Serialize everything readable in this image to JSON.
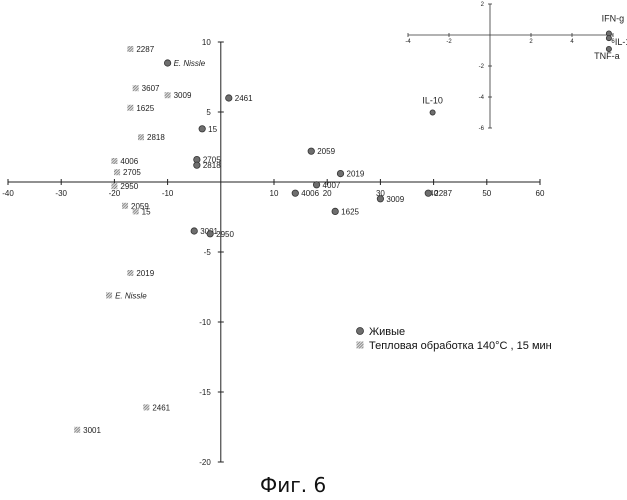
{
  "figure_caption": "Фиг. 6",
  "chart_data": [
    {
      "type": "scatter",
      "title": "",
      "xlabel": "",
      "ylabel": "",
      "xlim": [
        -40,
        60
      ],
      "ylim": [
        -20,
        10
      ],
      "x_ticks": [
        -40,
        -30,
        -20,
        -10,
        10,
        20,
        30,
        40,
        50,
        60
      ],
      "y_ticks": [
        10,
        5,
        -5,
        -10,
        -15,
        -20
      ],
      "legend": {
        "placement": "bottom-right",
        "entries": [
          {
            "name": "Живые",
            "marker": "dark-circle"
          },
          {
            "name": "Тепловая обработка 140°C , 15 мин",
            "marker": "hatched-square"
          }
        ]
      },
      "series": [
        {
          "name": "Живые",
          "marker": "dark-circle",
          "points": [
            {
              "label": "E. Nissle",
              "x": -10,
              "y": 8.5,
              "italic": true
            },
            {
              "label": "2461",
              "x": 1.5,
              "y": 6.0
            },
            {
              "label": "15",
              "x": -3.5,
              "y": 3.8
            },
            {
              "label": "2705",
              "x": -4.5,
              "y": 1.6
            },
            {
              "label": "2818",
              "x": -4.5,
              "y": 1.2
            },
            {
              "label": "2059",
              "x": 17,
              "y": 2.2
            },
            {
              "label": "2019",
              "x": 22.5,
              "y": 0.6
            },
            {
              "label": "4007",
              "x": 18,
              "y": -0.2
            },
            {
              "label": "4006",
              "x": 14,
              "y": -0.8
            },
            {
              "label": "3009",
              "x": 30,
              "y": -1.2
            },
            {
              "label": "2287",
              "x": 39,
              "y": -0.8
            },
            {
              "label": "1625",
              "x": 21.5,
              "y": -2.1
            },
            {
              "label": "3001",
              "x": -5,
              "y": -3.5
            },
            {
              "label": "2950",
              "x": -2,
              "y": -3.7
            }
          ]
        },
        {
          "name": "Тепловая обработка 140°C , 15 мин",
          "marker": "hatched-square",
          "points": [
            {
              "label": "2287",
              "x": -17,
              "y": 9.5
            },
            {
              "label": "3607",
              "x": -16,
              "y": 6.7
            },
            {
              "label": "3009",
              "x": -10,
              "y": 6.2
            },
            {
              "label": "1625",
              "x": -17,
              "y": 5.3
            },
            {
              "label": "2818",
              "x": -15,
              "y": 3.2
            },
            {
              "label": "4006",
              "x": -20,
              "y": 1.5
            },
            {
              "label": "2705",
              "x": -19.5,
              "y": 0.7
            },
            {
              "label": "2950",
              "x": -20,
              "y": -0.3
            },
            {
              "label": "2059",
              "x": -18,
              "y": -1.7
            },
            {
              "label": "15",
              "x": -16,
              "y": -2.1
            },
            {
              "label": "2019",
              "x": -17,
              "y": -6.5
            },
            {
              "label": "E. Nissle",
              "x": -21,
              "y": -8.1,
              "italic": true
            },
            {
              "label": "2461",
              "x": -14,
              "y": -16.1
            },
            {
              "label": "3001",
              "x": -27,
              "y": -17.7
            }
          ]
        }
      ]
    },
    {
      "type": "scatter",
      "title": "inset-loadings",
      "xlim": [
        -4,
        6
      ],
      "ylim": [
        -6,
        2
      ],
      "x_ticks": [
        -4,
        -2,
        2,
        4,
        6
      ],
      "y_ticks": [
        2,
        -2,
        -4,
        -6
      ],
      "points": [
        {
          "label": "IFN-g",
          "x": 5.8,
          "y": 0.1
        },
        {
          "label": "IL-12p40",
          "x": 5.8,
          "y": -0.2
        },
        {
          "label": "TNF-a",
          "x": 5.8,
          "y": -0.9
        },
        {
          "label": "IL-10",
          "x": -2.8,
          "y": -5.0
        }
      ]
    }
  ]
}
